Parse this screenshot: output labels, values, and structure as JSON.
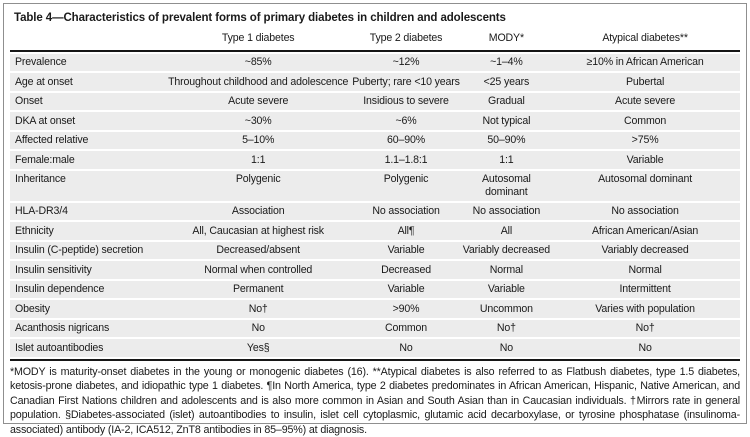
{
  "table": {
    "title": "Table 4—Characteristics of prevalent forms of primary diabetes in children and adolescents",
    "columns": [
      "",
      "Type 1 diabetes",
      "Type 2 diabetes",
      "MODY*",
      "Atypical diabetes**"
    ],
    "rows": [
      {
        "label": "Prevalence",
        "values": [
          "~85%",
          "~12%",
          "~1–4%",
          "≥10% in African American"
        ]
      },
      {
        "label": "Age at onset",
        "values": [
          "Throughout childhood and adolescence",
          "Puberty; rare <10 years",
          "<25 years",
          "Pubertal"
        ]
      },
      {
        "label": "Onset",
        "values": [
          "Acute severe",
          "Insidious to severe",
          "Gradual",
          "Acute severe"
        ]
      },
      {
        "label": "DKA at onset",
        "values": [
          "~30%",
          "~6%",
          "Not typical",
          "Common"
        ]
      },
      {
        "label": "Affected relative",
        "values": [
          "5–10%",
          "60–90%",
          "50–90%",
          ">75%"
        ]
      },
      {
        "label": "Female:male",
        "values": [
          "1:1",
          "1.1–1.8:1",
          "1:1",
          "Variable"
        ]
      },
      {
        "label": "Inheritance",
        "values": [
          "Polygenic",
          "Polygenic",
          "Autosomal dominant",
          "Autosomal dominant"
        ]
      },
      {
        "label": "HLA-DR3/4",
        "values": [
          "Association",
          "No association",
          "No association",
          "No association"
        ]
      },
      {
        "label": "Ethnicity",
        "values": [
          "All, Caucasian at highest risk",
          "All¶",
          "All",
          "African American/Asian"
        ]
      },
      {
        "label": "Insulin (C-peptide) secretion",
        "values": [
          "Decreased/absent",
          "Variable",
          "Variably decreased",
          "Variably decreased"
        ]
      },
      {
        "label": "Insulin sensitivity",
        "values": [
          "Normal when controlled",
          "Decreased",
          "Normal",
          "Normal"
        ]
      },
      {
        "label": "Insulin dependence",
        "values": [
          "Permanent",
          "Variable",
          "Variable",
          "Intermittent"
        ]
      },
      {
        "label": "Obesity",
        "values": [
          "No†",
          ">90%",
          "Uncommon",
          "Varies with population"
        ]
      },
      {
        "label": "Acanthosis nigricans",
        "values": [
          "No",
          "Common",
          "No†",
          "No†"
        ]
      },
      {
        "label": "Islet autoantibodies",
        "values": [
          "Yes§",
          "No",
          "No",
          "No"
        ]
      }
    ],
    "footnote": "*MODY is maturity-onset diabetes in the young or monogenic diabetes (16). **Atypical diabetes is also referred to as Flatbush diabetes, type 1.5 diabetes, ketosis-prone diabetes, and idiopathic type 1 diabetes. ¶In North America, type 2 diabetes predominates in African American, Hispanic, Native American, and Canadian First Nations children and adolescents and is also more common in Asian and South Asian than in Caucasian individuals. †Mirrors rate in general population. §Diabetes-associated (islet) autoantibodies to insulin, islet cell cytoplasmic, glutamic acid decarboxylase, or tyrosine phosphatase (insulinoma-associated) antibody (IA-2, ICA512, ZnT8 antibodies in 85–95%) at diagnosis."
  },
  "colors": {
    "row_band": "#ececec",
    "rule": "#161616",
    "border": "#8f8f8f",
    "text": "#1a1a1a"
  }
}
